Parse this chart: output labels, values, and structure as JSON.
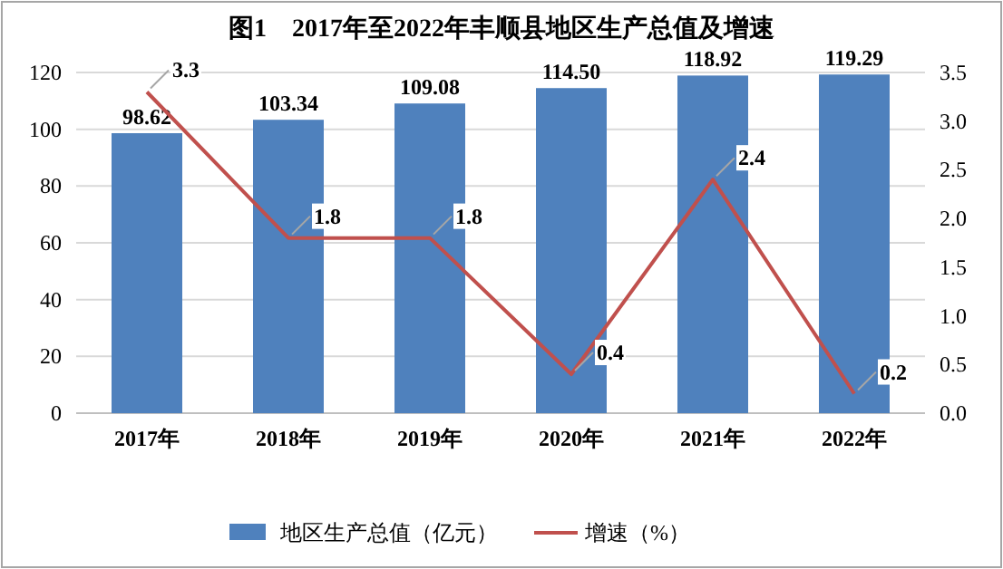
{
  "chart_data": {
    "type": "bar",
    "title": "图1　2017年至2022年丰顺县地区生产总值及增速",
    "categories": [
      "2017年",
      "2018年",
      "2019年",
      "2020年",
      "2021年",
      "2022年"
    ],
    "series": [
      {
        "name": "地区生产总值（亿元）",
        "color": "#4f81bd",
        "values": [
          98.62,
          103.34,
          109.08,
          114.5,
          118.92,
          119.29
        ],
        "value_labels": [
          "98.62",
          "103.34",
          "109.08",
          "114.50",
          "118.92",
          "119.29"
        ]
      },
      {
        "name": "增速（%）",
        "type": "line",
        "axis": "y2",
        "color": "#c0504d",
        "marker": "none",
        "values": [
          3.3,
          1.8,
          1.8,
          0.4,
          2.4,
          0.2
        ],
        "value_labels": [
          "3.3",
          "1.8",
          "1.8",
          "0.4",
          "2.4",
          "0.2"
        ]
      }
    ],
    "ylim": [
      0,
      120
    ],
    "yticks": [
      0,
      20,
      40,
      60,
      80,
      100,
      120
    ],
    "y2lim": [
      0,
      3.5
    ],
    "y2ticks": [
      {
        "value": 0,
        "label": "0.0"
      },
      {
        "value": 0.5,
        "label": "0.5"
      },
      {
        "value": 1,
        "label": "1.0"
      },
      {
        "value": 1.5,
        "label": "1.5"
      },
      {
        "value": 2,
        "label": "2.0"
      },
      {
        "value": 2.5,
        "label": "2.5"
      },
      {
        "value": 3,
        "label": "3.0"
      },
      {
        "value": 3.5,
        "label": "3.5"
      }
    ],
    "grid": "y",
    "legend": "bottom"
  }
}
